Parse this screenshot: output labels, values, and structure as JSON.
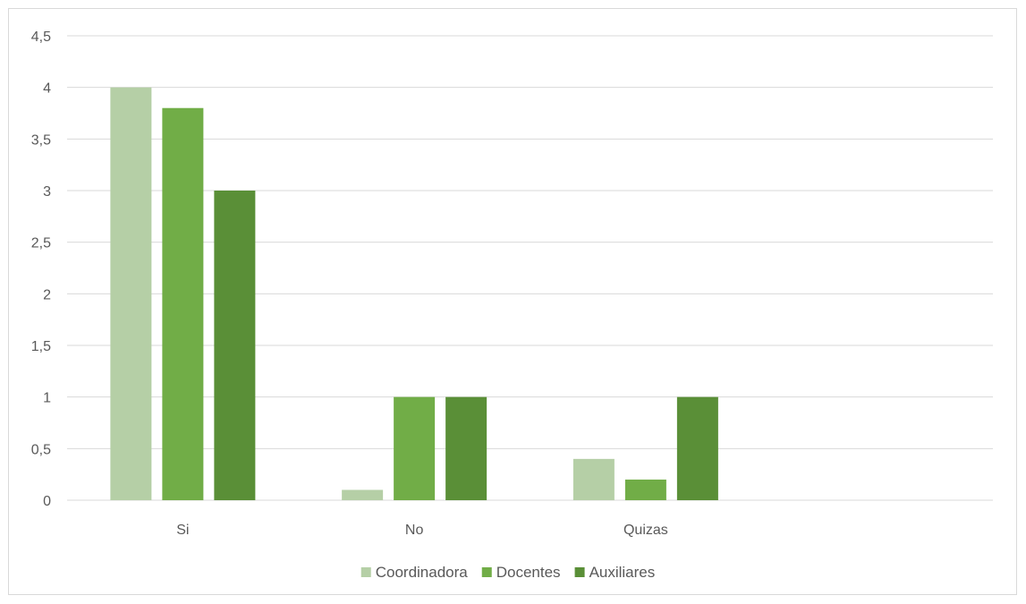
{
  "chart_data": {
    "type": "bar",
    "title": "",
    "xlabel": "",
    "ylabel": "",
    "categories": [
      "Si",
      "No",
      "Quizas",
      ""
    ],
    "series": [
      {
        "name": "Coordinadora",
        "values": [
          4,
          0.1,
          0.4,
          null
        ],
        "color": "#b5cfa6"
      },
      {
        "name": "Docentes",
        "values": [
          3.8,
          1,
          0.2,
          null
        ],
        "color": "#71ad47"
      },
      {
        "name": "Auxiliares",
        "values": [
          3,
          1,
          1,
          null
        ],
        "color": "#5a8f37"
      }
    ],
    "ylim": [
      0,
      4.5
    ],
    "yticks": [
      "0",
      "0,5",
      "1",
      "1,5",
      "2",
      "2,5",
      "3",
      "3,5",
      "4",
      "4,5"
    ],
    "grid": true,
    "legend_position": "bottom",
    "colors": {
      "gridline": "#d9d9d9",
      "axis_text": "#595959",
      "border": "#d9d9d9"
    }
  }
}
